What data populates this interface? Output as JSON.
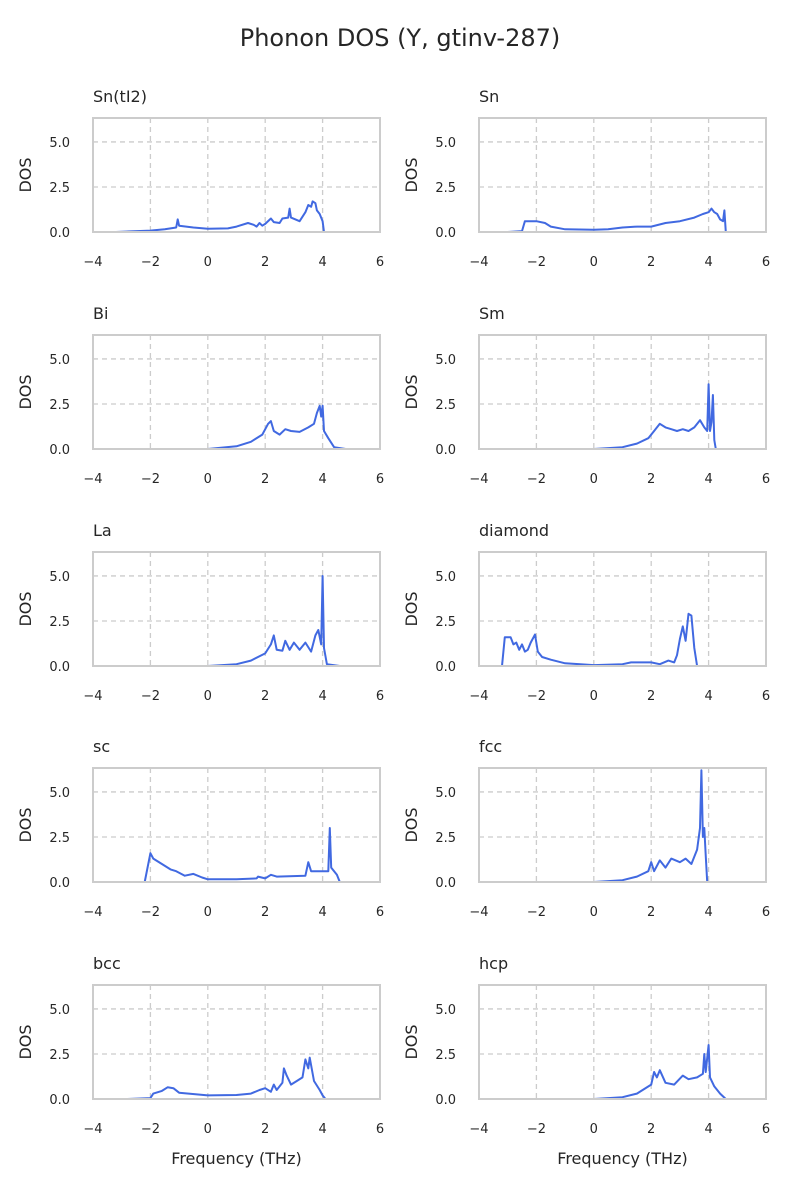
{
  "title": "Phonon DOS (Y, gtinv-287)",
  "chart_data": {
    "type": "line",
    "title": "Phonon DOS (Y, gtinv-287)",
    "xlabel": "Frequency (THz)",
    "ylabel": "DOS",
    "xlim": [
      -4,
      6
    ],
    "ylim": [
      0,
      6.33
    ],
    "xticks": [
      -4,
      -2,
      0,
      2,
      4,
      6
    ],
    "xtick_labels": [
      "−4",
      "−2",
      "0",
      "2",
      "4",
      "6"
    ],
    "yticks": [
      0,
      2.5,
      5.0
    ],
    "ytick_labels": [
      "0.0",
      "2.5",
      "5.0"
    ],
    "grid": true,
    "line_color": "#4169e1",
    "panels": [
      {
        "name": "Sn(tI2)",
        "x": [
          -3.2,
          -2,
          -1.5,
          -1.1,
          -1.05,
          -1,
          -0.5,
          0,
          0.7,
          1,
          1.4,
          1.6,
          1.7,
          1.8,
          1.9,
          2,
          2.2,
          2.3,
          2.5,
          2.6,
          2.8,
          2.85,
          2.9,
          3.2,
          3.4,
          3.5,
          3.6,
          3.65,
          3.75,
          3.8,
          3.9,
          4.0,
          4.05,
          4.8
        ],
        "y": [
          0,
          0.08,
          0.15,
          0.25,
          0.7,
          0.35,
          0.25,
          0.18,
          0.2,
          0.3,
          0.5,
          0.4,
          0.3,
          0.5,
          0.35,
          0.45,
          0.75,
          0.55,
          0.5,
          0.75,
          0.8,
          1.3,
          0.8,
          0.6,
          1.1,
          1.5,
          1.4,
          1.7,
          1.6,
          1.2,
          1.0,
          0.6,
          0,
          0
        ]
      },
      {
        "name": "Sn",
        "x": [
          -3,
          -2.5,
          -2.4,
          -2,
          -1.7,
          -1.5,
          -1,
          0,
          0.5,
          1,
          1.5,
          2,
          2.5,
          3,
          3.5,
          3.8,
          4,
          4.1,
          4.2,
          4.3,
          4.4,
          4.5,
          4.55,
          4.6,
          5.2
        ],
        "y": [
          0,
          0.05,
          0.6,
          0.6,
          0.5,
          0.3,
          0.15,
          0.12,
          0.15,
          0.25,
          0.3,
          0.3,
          0.5,
          0.6,
          0.8,
          1.0,
          1.1,
          1.3,
          1.1,
          1.0,
          0.7,
          0.6,
          1.2,
          0,
          0
        ]
      },
      {
        "name": "Bi",
        "x": [
          0,
          1,
          1.5,
          1.9,
          2.1,
          2.2,
          2.3,
          2.5,
          2.7,
          2.9,
          3.2,
          3.5,
          3.7,
          3.8,
          3.9,
          3.95,
          4.0,
          4.05,
          4.2,
          4.4,
          4.8
        ],
        "y": [
          0,
          0.15,
          0.4,
          0.8,
          1.4,
          1.55,
          1.0,
          0.8,
          1.1,
          1.0,
          0.95,
          1.2,
          1.4,
          2.0,
          2.4,
          1.8,
          2.4,
          1.0,
          0.6,
          0.1,
          0
        ]
      },
      {
        "name": "Sm",
        "x": [
          0,
          1,
          1.5,
          1.9,
          2.1,
          2.3,
          2.5,
          2.7,
          2.9,
          3.1,
          3.3,
          3.5,
          3.7,
          3.85,
          3.95,
          4.0,
          4.05,
          4.1,
          4.15,
          4.2,
          4.25,
          4.5
        ],
        "y": [
          0,
          0.1,
          0.3,
          0.6,
          1.0,
          1.4,
          1.2,
          1.1,
          1.0,
          1.1,
          1.0,
          1.2,
          1.6,
          1.2,
          1.0,
          3.6,
          1.0,
          1.5,
          3.0,
          0.5,
          0,
          0
        ]
      },
      {
        "name": "La",
        "x": [
          0,
          1,
          1.5,
          2,
          2.2,
          2.3,
          2.4,
          2.6,
          2.7,
          2.85,
          3,
          3.2,
          3.4,
          3.6,
          3.75,
          3.85,
          3.95,
          4.0,
          4.05,
          4.15,
          4.6
        ],
        "y": [
          0,
          0.1,
          0.3,
          0.7,
          1.2,
          1.7,
          0.9,
          0.85,
          1.4,
          0.9,
          1.3,
          0.9,
          1.3,
          0.8,
          1.7,
          2.0,
          1.2,
          5.0,
          1.0,
          0.1,
          0
        ]
      },
      {
        "name": "diamond",
        "x": [
          -3.8,
          -3.2,
          -3.1,
          -2.9,
          -2.8,
          -2.7,
          -2.6,
          -2.5,
          -2.4,
          -2.3,
          -2.2,
          -2.05,
          -1.95,
          -1.8,
          -1.5,
          -1,
          0,
          1,
          1.3,
          2,
          2.3,
          2.6,
          2.8,
          2.9,
          3.0,
          3.1,
          3.2,
          3.3,
          3.4,
          3.5,
          3.6,
          4
        ],
        "y": [
          0,
          0,
          1.6,
          1.6,
          1.2,
          1.3,
          0.9,
          1.2,
          0.8,
          0.9,
          1.3,
          1.75,
          0.8,
          0.5,
          0.35,
          0.15,
          0.05,
          0.1,
          0.2,
          0.2,
          0.1,
          0.3,
          0.2,
          0.6,
          1.5,
          2.2,
          1.4,
          2.9,
          2.8,
          1.0,
          0,
          0
        ]
      },
      {
        "name": "sc",
        "x": [
          -2.8,
          -2.2,
          -2.0,
          -1.9,
          -1.6,
          -1.3,
          -1.1,
          -0.8,
          -0.5,
          -0.2,
          0,
          1,
          1.7,
          1.75,
          2,
          2.2,
          2.4,
          3.4,
          3.5,
          3.6,
          4.2,
          4.25,
          4.3,
          4.5,
          4.6,
          5.2
        ],
        "y": [
          0,
          0,
          1.6,
          1.3,
          1.0,
          0.7,
          0.6,
          0.35,
          0.45,
          0.25,
          0.15,
          0.15,
          0.2,
          0.3,
          0.2,
          0.4,
          0.3,
          0.35,
          1.1,
          0.6,
          0.6,
          3.0,
          0.8,
          0.4,
          0,
          0
        ]
      },
      {
        "name": "fcc",
        "x": [
          0,
          1,
          1.5,
          1.9,
          2.0,
          2.1,
          2.3,
          2.5,
          2.7,
          3,
          3.2,
          3.4,
          3.6,
          3.7,
          3.75,
          3.8,
          3.85,
          3.9,
          3.95,
          4.2
        ],
        "y": [
          0,
          0.1,
          0.3,
          0.6,
          1.1,
          0.6,
          1.2,
          0.8,
          1.3,
          1.1,
          1.3,
          1.0,
          1.8,
          3.0,
          6.2,
          2.5,
          3.0,
          1.5,
          0,
          0
        ]
      },
      {
        "name": "bcc",
        "x": [
          -2.8,
          -2,
          -1.9,
          -1.6,
          -1.4,
          -1.2,
          -1,
          0,
          1,
          1.5,
          1.8,
          2,
          2.2,
          2.3,
          2.4,
          2.6,
          2.65,
          2.75,
          2.9,
          3.1,
          3.3,
          3.4,
          3.5,
          3.55,
          3.7,
          3.9,
          4.0,
          4.1,
          4.8
        ],
        "y": [
          0,
          0.05,
          0.3,
          0.45,
          0.65,
          0.6,
          0.35,
          0.2,
          0.22,
          0.3,
          0.5,
          0.6,
          0.4,
          0.8,
          0.5,
          0.9,
          1.7,
          1.3,
          0.8,
          1.0,
          1.2,
          2.2,
          1.7,
          2.3,
          1.0,
          0.5,
          0.2,
          0,
          0
        ]
      },
      {
        "name": "hcp",
        "x": [
          0,
          1,
          1.5,
          2,
          2.1,
          2.2,
          2.3,
          2.5,
          2.8,
          3.1,
          3.3,
          3.6,
          3.8,
          3.85,
          3.9,
          4.0,
          4.05,
          4.2,
          4.4,
          4.6
        ],
        "y": [
          0,
          0.1,
          0.3,
          0.8,
          1.5,
          1.2,
          1.6,
          0.9,
          0.8,
          1.3,
          1.1,
          1.2,
          1.4,
          2.5,
          1.5,
          3.0,
          1.2,
          0.7,
          0.3,
          0
        ]
      }
    ]
  }
}
